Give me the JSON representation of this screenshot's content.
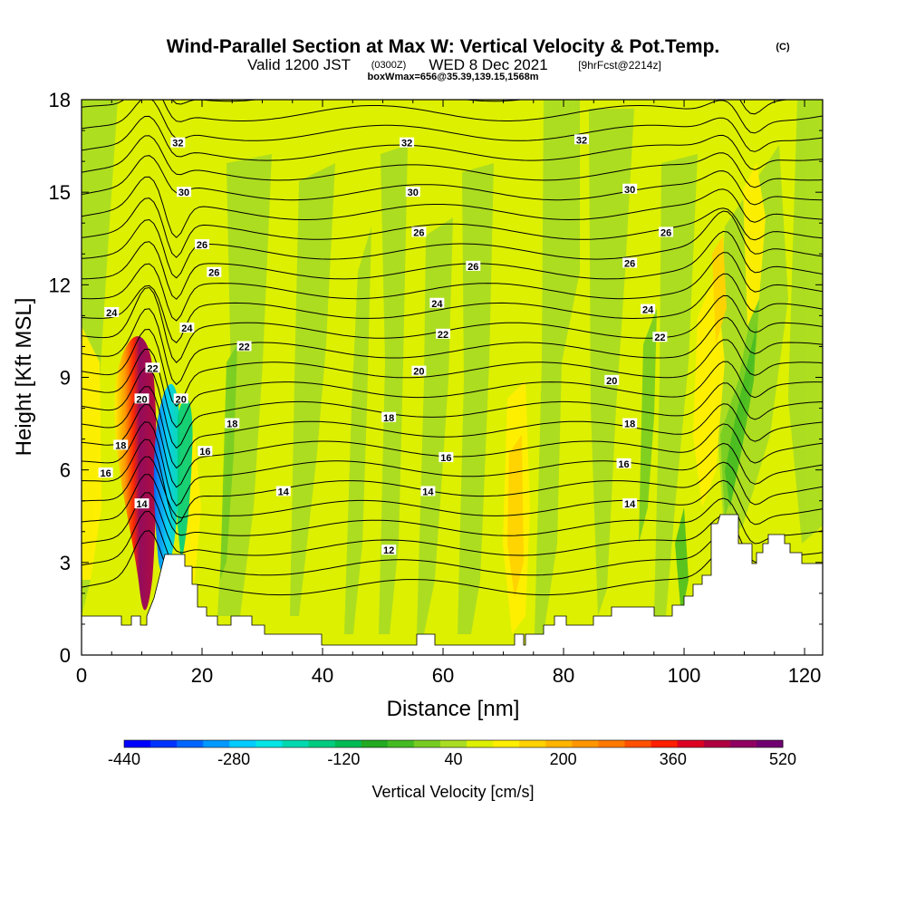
{
  "title": {
    "main": "Wind-Parallel Section at Max W: Vertical Velocity & Pot.Temp.",
    "copyright": "(C)",
    "valid_prefix": "Valid 1200 JST",
    "valid_utc": "(0300Z)",
    "valid_date": "WED 8 Dec 2021",
    "forecast": "[9hrFcst@2214z]",
    "boxinfo": "boxWmax=656@35.39,139.15,1568m"
  },
  "chart_data": {
    "type": "heatmap",
    "xlabel": "Distance [nm]",
    "ylabel": "Height [Kft MSL]",
    "xlim": [
      0,
      123
    ],
    "ylim": [
      0,
      18
    ],
    "x_ticks": [
      "0",
      "20",
      "40",
      "60",
      "80",
      "100",
      "120"
    ],
    "y_ticks": [
      "0",
      "3",
      "6",
      "9",
      "12",
      "15",
      "18"
    ],
    "colorbar": {
      "label": "Vertical Velocity [cm/s]",
      "min": -440,
      "max": 520,
      "step": 40,
      "tick_labels": [
        "-440",
        "-280",
        "-120",
        "40",
        "200",
        "360",
        "520"
      ],
      "colors": [
        "#0000ff",
        "#0033ff",
        "#0066ff",
        "#0099ff",
        "#00ccff",
        "#00e5e5",
        "#00d9b0",
        "#00cc80",
        "#00bb55",
        "#22aa22",
        "#44bb22",
        "#77cc22",
        "#aadd22",
        "#ddf000",
        "#ffee00",
        "#ffd200",
        "#ffb400",
        "#ff9600",
        "#ff7800",
        "#ff5000",
        "#ff1e00",
        "#dd0022",
        "#b00040",
        "#900060",
        "#700070"
      ]
    },
    "contour_labels": [
      {
        "value": "32",
        "x": 16,
        "y": 16.6
      },
      {
        "value": "32",
        "x": 54,
        "y": 16.6
      },
      {
        "value": "32",
        "x": 83,
        "y": 16.7
      },
      {
        "value": "30",
        "x": 17,
        "y": 15.0
      },
      {
        "value": "30",
        "x": 55,
        "y": 15.0
      },
      {
        "value": "30",
        "x": 91,
        "y": 15.1
      },
      {
        "value": "26",
        "x": 20,
        "y": 13.3
      },
      {
        "value": "26",
        "x": 56,
        "y": 13.7
      },
      {
        "value": "26",
        "x": 97,
        "y": 13.7
      },
      {
        "value": "26",
        "x": 22,
        "y": 12.4
      },
      {
        "value": "26",
        "x": 65,
        "y": 12.6
      },
      {
        "value": "26",
        "x": 91,
        "y": 12.7
      },
      {
        "value": "24",
        "x": 5,
        "y": 11.1
      },
      {
        "value": "24",
        "x": 59,
        "y": 11.4
      },
      {
        "value": "24",
        "x": 94,
        "y": 11.2
      },
      {
        "value": "24",
        "x": 17.5,
        "y": 10.6
      },
      {
        "value": "22",
        "x": 27,
        "y": 10.0
      },
      {
        "value": "22",
        "x": 60,
        "y": 10.4
      },
      {
        "value": "22",
        "x": 96,
        "y": 10.3
      },
      {
        "value": "22",
        "x": 11.8,
        "y": 9.3
      },
      {
        "value": "20",
        "x": 56,
        "y": 9.2
      },
      {
        "value": "20",
        "x": 88,
        "y": 8.9
      },
      {
        "value": "20",
        "x": 10,
        "y": 8.3
      },
      {
        "value": "20",
        "x": 16.5,
        "y": 8.3
      },
      {
        "value": "18",
        "x": 25,
        "y": 7.5
      },
      {
        "value": "18",
        "x": 51,
        "y": 7.7
      },
      {
        "value": "18",
        "x": 91,
        "y": 7.5
      },
      {
        "value": "18",
        "x": 6.5,
        "y": 6.8
      },
      {
        "value": "16",
        "x": 20.5,
        "y": 6.6
      },
      {
        "value": "16",
        "x": 60.5,
        "y": 6.4
      },
      {
        "value": "16",
        "x": 90,
        "y": 6.2
      },
      {
        "value": "16",
        "x": 4,
        "y": 5.9
      },
      {
        "value": "14",
        "x": 10,
        "y": 4.9
      },
      {
        "value": "14",
        "x": 33.5,
        "y": 5.3
      },
      {
        "value": "14",
        "x": 57.5,
        "y": 5.3
      },
      {
        "value": "14",
        "x": 91,
        "y": 4.9
      },
      {
        "value": "12",
        "x": 51,
        "y": 3.4
      }
    ]
  }
}
